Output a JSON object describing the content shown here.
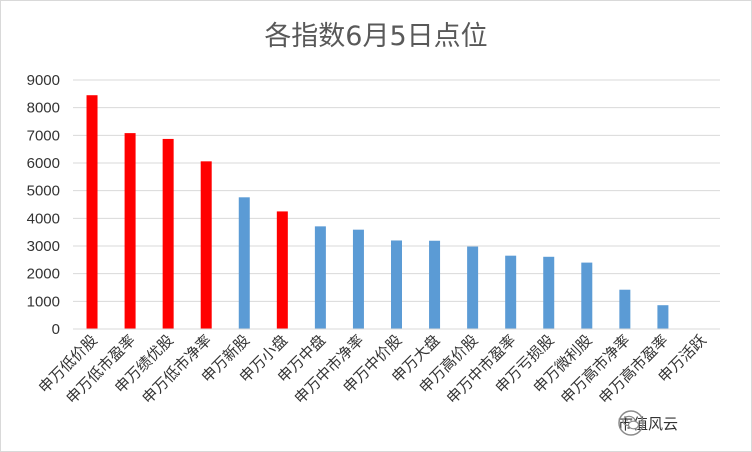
{
  "chart_data": {
    "type": "bar",
    "title": "各指数6月5日点位",
    "categories": [
      "申万低价股",
      "申万低市盈率",
      "申万绩优股",
      "申万低市净率",
      "申万新股",
      "申万小盘",
      "申万中盘",
      "申万中市净率",
      "申万中价股",
      "申万大盘",
      "申万高价股",
      "申万中市盈率",
      "申万亏损股",
      "申万微利股",
      "申万高市净率",
      "申万高市盈率",
      "申万活跃"
    ],
    "values": [
      8450,
      7080,
      6870,
      6060,
      4760,
      4250,
      3710,
      3590,
      3200,
      3190,
      2980,
      2650,
      2610,
      2400,
      1420,
      860,
      0
    ],
    "bar_colors": [
      "#ff0000",
      "#ff0000",
      "#ff0000",
      "#ff0000",
      "#5b9bd5",
      "#ff0000",
      "#5b9bd5",
      "#5b9bd5",
      "#5b9bd5",
      "#5b9bd5",
      "#5b9bd5",
      "#5b9bd5",
      "#5b9bd5",
      "#5b9bd5",
      "#5b9bd5",
      "#5b9bd5",
      "#5b9bd5"
    ],
    "ylim": [
      0,
      9000
    ],
    "yticks": [
      0,
      1000,
      2000,
      3000,
      4000,
      5000,
      6000,
      7000,
      8000,
      9000
    ],
    "grid": true,
    "legend": "none"
  },
  "watermark": {
    "text": "市值风云",
    "icon": "wechat-icon"
  }
}
